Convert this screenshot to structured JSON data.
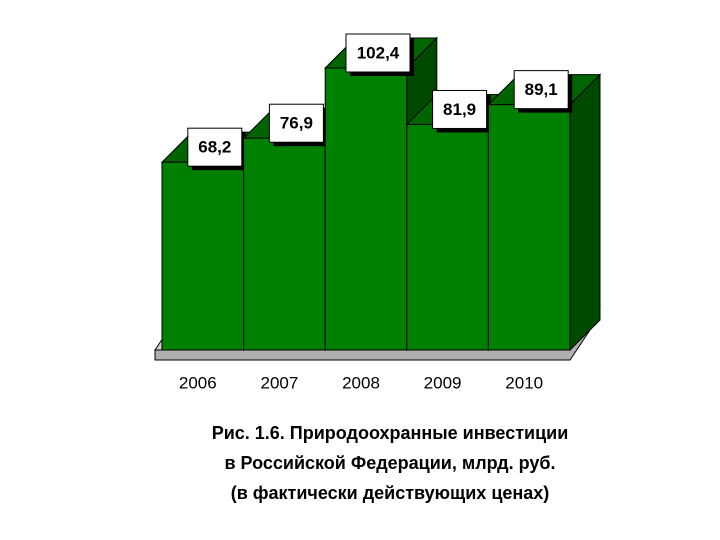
{
  "chart_data": {
    "type": "bar3d",
    "title": [
      "Рис. 1.6. Природоохранные инвестиции",
      "в  Российской Федерации, млрд. руб.",
      "(в фактически действующих ценах)"
    ],
    "categories": [
      "2006",
      "2007",
      "2008",
      "2009",
      "2010"
    ],
    "values": [
      68.2,
      76.9,
      102.4,
      81.9,
      89.1
    ],
    "value_labels": [
      "68,2",
      "76,9",
      "102,4",
      "81,9",
      "89,1"
    ],
    "color": "#008000"
  }
}
